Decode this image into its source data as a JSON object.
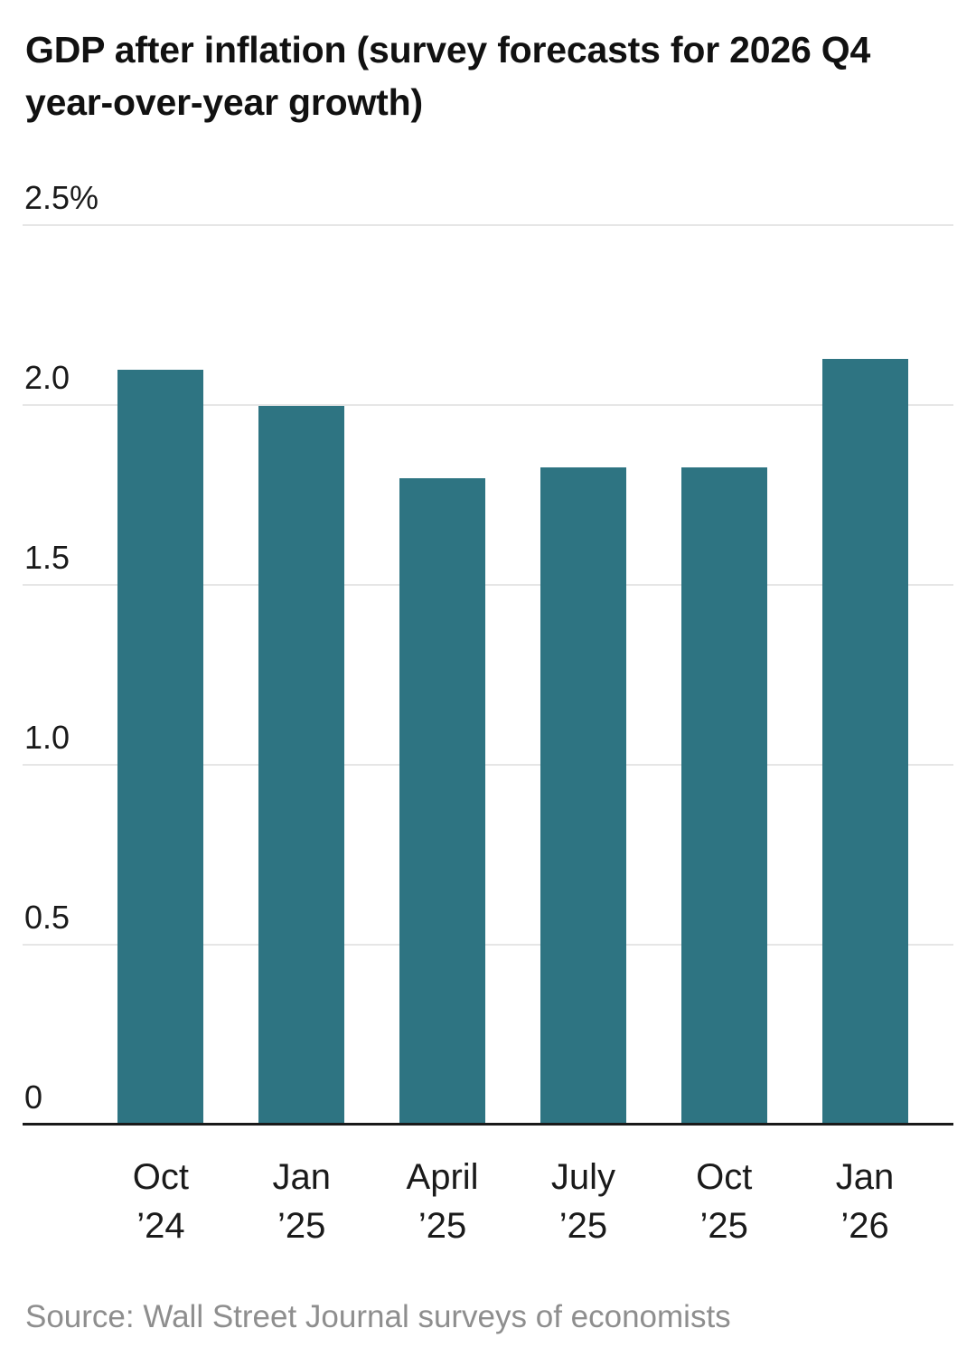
{
  "chart": {
    "title": "GDP after inflation (survey forecasts for 2026 Q4 year-over-year growth)",
    "source": "Source: Wall Street Journal surveys of economists"
  },
  "chart_data": {
    "type": "bar",
    "title": "GDP after inflation (survey forecasts for 2026 Q4 year-over-year growth)",
    "categories": [
      "Oct ’24",
      "Jan ’25",
      "April ’25",
      "July ’25",
      "Oct ’25",
      "Jan ’26"
    ],
    "values": [
      2.1,
      2.0,
      1.8,
      1.83,
      1.83,
      2.13
    ],
    "unit": "%",
    "ylim": [
      0,
      2.5
    ],
    "yticks": [
      {
        "value": 0,
        "label": "0"
      },
      {
        "value": 0.5,
        "label": "0.5"
      },
      {
        "value": 1.0,
        "label": "1.0"
      },
      {
        "value": 1.5,
        "label": "1.5"
      },
      {
        "value": 2.0,
        "label": "2.0"
      },
      {
        "value": 2.5,
        "label": "2.5%"
      }
    ],
    "bar_color": "#2e7482",
    "grid_color": "#e6e6e6",
    "axis_color": "#1a1a1a",
    "grid": "horizontal",
    "legend": "none",
    "source": "Source: Wall Street Journal surveys of economists"
  }
}
